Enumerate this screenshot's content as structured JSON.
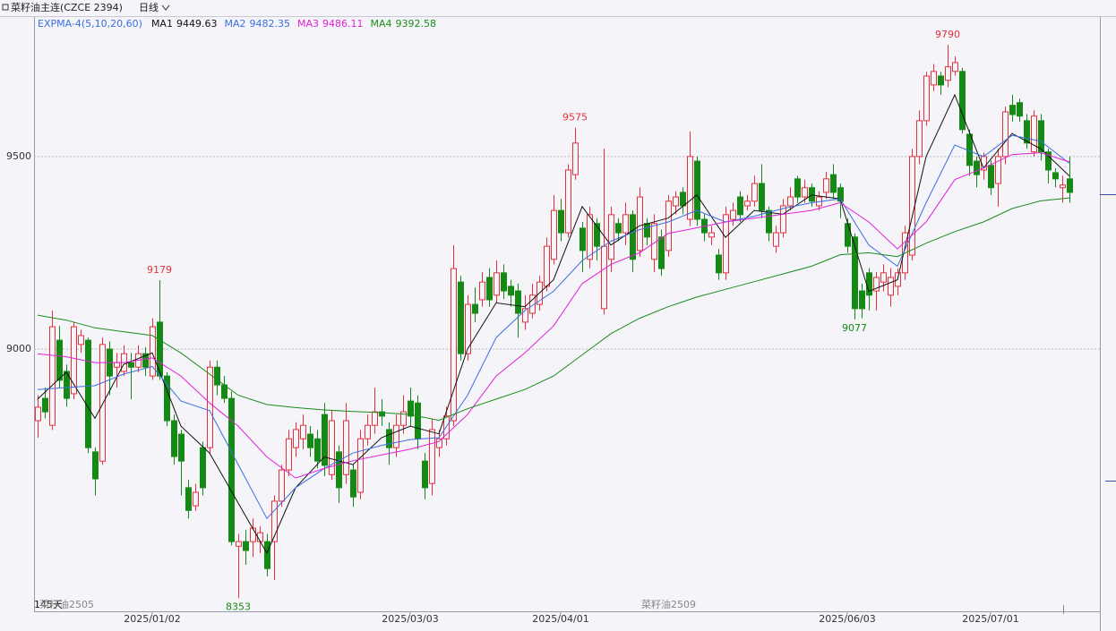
{
  "chart_data": {
    "type": "candlestick",
    "title": "菜籽油主连(CZCE 2394)",
    "period": "日线",
    "indicator": "EXPMA-4(5,10,20,60)",
    "bar_count": "145天",
    "ylim": [
      8319,
      9860
    ],
    "yticks": [
      9000,
      9500
    ],
    "xlim": [
      -0.5,
      148
    ],
    "grid": true,
    "up_color": "#e8303a",
    "down_color": "#148a14",
    "date_ticks": [
      {
        "value": 16,
        "label": "2025/01/02"
      },
      {
        "value": 52,
        "label": "2025/03/03"
      },
      {
        "value": 73,
        "label": "2025/04/01"
      },
      {
        "value": 113,
        "label": "2025/06/03"
      },
      {
        "value": 133,
        "label": "2025/07/01"
      }
    ],
    "contract_labels": [
      {
        "value": 0,
        "label": "菜籽油2505"
      },
      {
        "value": 84,
        "label": "菜籽油2509"
      }
    ],
    "marked_highs": [
      17,
      75,
      127
    ],
    "marked_lows": [
      28,
      114
    ],
    "open": [
      8814,
      8872,
      8802,
      9023,
      8942,
      8884,
      9012,
      9023,
      8733,
      8709,
      9000,
      8953,
      8942,
      8965,
      8953,
      8988,
      8930,
      9070,
      8930,
      8814,
      8779,
      8640,
      8593,
      8744,
      8744,
      8953,
      8907,
      8872,
      8488,
      8500,
      8500,
      8500,
      8500,
      8500,
      8605,
      8686,
      8744,
      8767,
      8779,
      8767,
      8830,
      8674,
      8733,
      8674,
      8686,
      8628,
      8767,
      8802,
      8837,
      8791,
      8744,
      8802,
      8865,
      8860,
      8709,
      8651,
      8744,
      8767,
      8814,
      9174,
      8988,
      9116,
      9128,
      9186,
      9140,
      9198,
      9163,
      9151,
      9070,
      9093,
      9116,
      9163,
      9233,
      9360,
      9302,
      9453,
      9314,
      9233,
      9326,
      9105,
      9233,
      9326,
      9302,
      9349,
      9256,
      9326,
      9233,
      9291,
      9256,
      9372,
      9407,
      9337,
      9488,
      9337,
      9291,
      9244,
      9198,
      9337,
      9395,
      9372,
      9384,
      9430,
      9360,
      9267,
      9302,
      9372,
      9442,
      9395,
      9419,
      9372,
      9407,
      9453,
      9419,
      9326,
      9291,
      9151,
      9198,
      9151,
      9174,
      9140,
      9163,
      9198,
      9244,
      9500,
      9593,
      9686,
      9709,
      9698,
      9721,
      9721,
      9558,
      9488,
      9465,
      9477,
      9430,
      9500,
      9633,
      9640,
      9593,
      9512,
      9593,
      9512,
      9458,
      9419,
      9442
    ],
    "high": [
      8880,
      8900,
      9100,
      9060,
      8960,
      9070,
      9050,
      9030,
      8745,
      9030,
      9020,
      8990,
      9010,
      8990,
      9010,
      9005,
      9080,
      9179,
      8940,
      8830,
      8790,
      8660,
      8650,
      8760,
      8970,
      8970,
      8930,
      8890,
      8520,
      8530,
      8560,
      8540,
      8520,
      8620,
      8700,
      8790,
      8810,
      8830,
      8800,
      8790,
      8860,
      8840,
      8750,
      8860,
      8700,
      8790,
      8830,
      8900,
      8870,
      8810,
      8830,
      8880,
      8900,
      8880,
      8730,
      8820,
      8790,
      8850,
      9270,
      9190,
      9140,
      9160,
      9200,
      9210,
      9230,
      9220,
      9180,
      9170,
      9140,
      9170,
      9190,
      9290,
      9400,
      9390,
      9480,
      9575,
      9330,
      9370,
      9340,
      9520,
      9370,
      9340,
      9380,
      9360,
      9420,
      9340,
      9350,
      9310,
      9400,
      9410,
      9420,
      9565,
      9500,
      9350,
      9320,
      9260,
      9370,
      9380,
      9410,
      9400,
      9450,
      9480,
      9370,
      9320,
      9390,
      9420,
      9450,
      9440,
      9430,
      9410,
      9460,
      9480,
      9430,
      9340,
      9300,
      9170,
      9210,
      9200,
      9220,
      9210,
      9210,
      9320,
      9520,
      9620,
      9720,
      9740,
      9720,
      9790,
      9760,
      9730,
      9570,
      9500,
      9510,
      9490,
      9520,
      9630,
      9660,
      9650,
      9610,
      9620,
      9610,
      9520,
      9470,
      9450,
      9500
    ],
    "low": [
      8770,
      8820,
      8790,
      8900,
      8850,
      8870,
      8990,
      8730,
      8620,
      8700,
      8880,
      8900,
      8930,
      8870,
      8940,
      8930,
      8920,
      8920,
      8800,
      8700,
      8620,
      8560,
      8580,
      8620,
      8730,
      8880,
      8860,
      8490,
      8353,
      8440,
      8460,
      8470,
      8410,
      8400,
      8590,
      8670,
      8720,
      8740,
      8720,
      8690,
      8670,
      8660,
      8600,
      8650,
      8590,
      8610,
      8750,
      8780,
      8800,
      8700,
      8720,
      8780,
      8800,
      8740,
      8610,
      8620,
      8720,
      8750,
      8800,
      8970,
      8970,
      9070,
      9110,
      9110,
      9120,
      9130,
      9110,
      9030,
      9050,
      9080,
      9100,
      9150,
      9220,
      9280,
      9290,
      9440,
      9200,
      9210,
      9230,
      9090,
      9200,
      9280,
      9270,
      9200,
      9240,
      9270,
      9200,
      9190,
      9240,
      9350,
      9350,
      9320,
      9320,
      9280,
      9270,
      9180,
      9180,
      9320,
      9330,
      9360,
      9370,
      9340,
      9280,
      9250,
      9290,
      9360,
      9380,
      9380,
      9370,
      9360,
      9390,
      9390,
      9340,
      9250,
      9077,
      9080,
      9100,
      9100,
      9150,
      9110,
      9140,
      9180,
      9230,
      9480,
      9580,
      9670,
      9660,
      9680,
      9710,
      9560,
      9450,
      9420,
      9440,
      9400,
      9370,
      9480,
      9590,
      9590,
      9520,
      9500,
      9490,
      9430,
      9420,
      9380,
      9380
    ],
    "close": [
      8849,
      8837,
      9058,
      8919,
      8872,
      9058,
      9035,
      8744,
      8663,
      9012,
      8930,
      8965,
      8988,
      8953,
      8988,
      8953,
      9058,
      8930,
      8814,
      8721,
      8709,
      8581,
      8628,
      8640,
      8953,
      8907,
      8872,
      8500,
      8500,
      8477,
      8535,
      8523,
      8430,
      8605,
      8686,
      8767,
      8791,
      8802,
      8744,
      8709,
      8698,
      8814,
      8640,
      8814,
      8616,
      8767,
      8802,
      8837,
      8826,
      8744,
      8802,
      8837,
      8826,
      8767,
      8640,
      8791,
      8767,
      8826,
      9209,
      8988,
      9116,
      9093,
      9174,
      9128,
      9198,
      9151,
      9140,
      9093,
      9105,
      9140,
      9174,
      9267,
      9360,
      9302,
      9465,
      9535,
      9256,
      9349,
      9267,
      9267,
      9349,
      9302,
      9349,
      9233,
      9395,
      9291,
      9326,
      9209,
      9384,
      9395,
      9372,
      9500,
      9337,
      9302,
      9302,
      9198,
      9349,
      9360,
      9349,
      9384,
      9430,
      9360,
      9302,
      9302,
      9372,
      9395,
      9395,
      9419,
      9384,
      9395,
      9442,
      9407,
      9384,
      9267,
      9105,
      9105,
      9140,
      9186,
      9198,
      9186,
      9198,
      9302,
      9500,
      9593,
      9709,
      9721,
      9686,
      9733,
      9744,
      9570,
      9477,
      9453,
      9500,
      9419,
      9500,
      9616,
      9609,
      9605,
      9535,
      9605,
      9512,
      9465,
      9442,
      9426,
      9407
    ],
    "ma_index": [
      0,
      4,
      8,
      12,
      16,
      20,
      24,
      28,
      32,
      36,
      40,
      44,
      48,
      52,
      56,
      60,
      64,
      68,
      72,
      76,
      80,
      84,
      88,
      92,
      96,
      100,
      104,
      108,
      112,
      116,
      120,
      124,
      128,
      132,
      136,
      140,
      144
    ],
    "series": [
      {
        "name": "MA1",
        "color": "#111111",
        "values": [
          8870,
          8940,
          8820,
          8960,
          8990,
          8800,
          8730,
          8600,
          8470,
          8640,
          8720,
          8700,
          8770,
          8800,
          8780,
          9000,
          9120,
          9110,
          9180,
          9370,
          9270,
          9320,
          9340,
          9400,
          9290,
          9360,
          9350,
          9400,
          9390,
          9150,
          9180,
          9500,
          9660,
          9470,
          9560,
          9520,
          9449.63
        ]
      },
      {
        "name": "MA2",
        "color": "#3a6fe0",
        "values": [
          8895,
          8900,
          8905,
          8935,
          8955,
          8865,
          8840,
          8700,
          8560,
          8640,
          8690,
          8730,
          8750,
          8765,
          8770,
          8880,
          9030,
          9100,
          9150,
          9230,
          9280,
          9310,
          9330,
          9360,
          9330,
          9345,
          9365,
          9380,
          9390,
          9270,
          9215,
          9380,
          9530,
          9500,
          9555,
          9540,
          9482.35
        ]
      },
      {
        "name": "MA3",
        "color": "#e020d8",
        "values": [
          8988,
          8980,
          8965,
          8965,
          8977,
          8930,
          8860,
          8800,
          8720,
          8665,
          8690,
          8710,
          8725,
          8740,
          8760,
          8830,
          8930,
          8990,
          9060,
          9170,
          9220,
          9250,
          9300,
          9315,
          9330,
          9340,
          9350,
          9360,
          9380,
          9330,
          9260,
          9330,
          9440,
          9470,
          9505,
          9510,
          9486.11
        ]
      },
      {
        "name": "MA4",
        "color": "#1a8c1a",
        "values": [
          9088,
          9075,
          9055,
          9045,
          9035,
          8990,
          8935,
          8880,
          8856,
          8848,
          8842,
          8838,
          8835,
          8830,
          8815,
          8845,
          8870,
          8895,
          8930,
          8985,
          9040,
          9080,
          9110,
          9135,
          9155,
          9175,
          9195,
          9215,
          9245,
          9250,
          9240,
          9275,
          9305,
          9330,
          9365,
          9385,
          9392.58
        ]
      }
    ]
  }
}
